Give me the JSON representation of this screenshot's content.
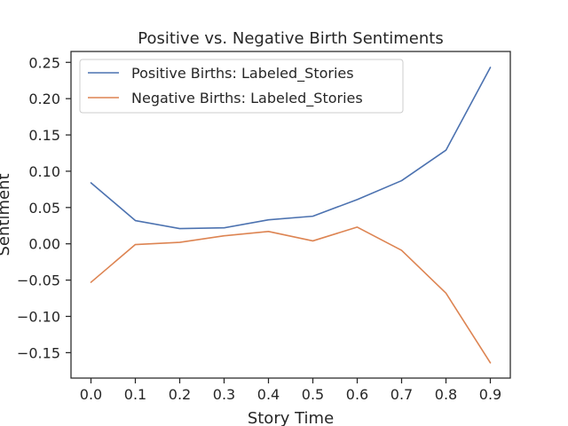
{
  "chart_data": {
    "type": "line",
    "title": "Positive vs. Negative Birth Sentiments",
    "xlabel": "Story Time",
    "ylabel": "Sentiment",
    "x": [
      0.0,
      0.1,
      0.2,
      0.3,
      0.4,
      0.5,
      0.6,
      0.7,
      0.8,
      0.9
    ],
    "x_ticks": [
      "0.0",
      "0.1",
      "0.2",
      "0.3",
      "0.4",
      "0.5",
      "0.6",
      "0.7",
      "0.8",
      "0.9"
    ],
    "y_ticks": [
      "0.25",
      "0.20",
      "0.15",
      "0.10",
      "0.05",
      "0.00",
      "−0.05",
      "−0.10",
      "−0.15"
    ],
    "y_tick_values": [
      0.25,
      0.2,
      0.15,
      0.1,
      0.05,
      0.0,
      -0.05,
      -0.1,
      -0.15
    ],
    "xlim": [
      -0.045,
      0.945
    ],
    "ylim": [
      -0.185,
      0.265
    ],
    "grid": false,
    "legend_position": "top-left",
    "series": [
      {
        "name": "Positive Births: Labeled_Stories",
        "color": "#4c72b0",
        "values": [
          0.084,
          0.032,
          0.021,
          0.022,
          0.033,
          0.038,
          0.061,
          0.087,
          0.129,
          0.243
        ]
      },
      {
        "name": "Negative Births: Labeled_Stories",
        "color": "#dd8452",
        "values": [
          -0.053,
          -0.001,
          0.002,
          0.011,
          0.017,
          0.004,
          0.023,
          -0.009,
          -0.068,
          -0.164
        ]
      }
    ]
  }
}
